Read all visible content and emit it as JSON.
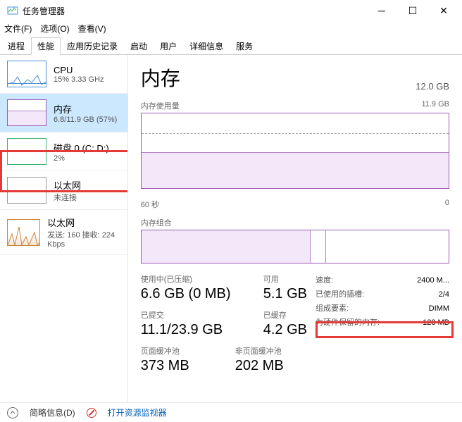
{
  "window": {
    "title": "任务管理器"
  },
  "menu": {
    "file": "文件(F)",
    "options": "选项(O)",
    "view": "查看(V)"
  },
  "tabs": [
    "进程",
    "性能",
    "应用历史记录",
    "启动",
    "用户",
    "详细信息",
    "服务"
  ],
  "active_tab_index": 1,
  "sidebar": [
    {
      "name": "CPU",
      "sub": "15% 3.33 GHz",
      "kind": "cpu",
      "border": "#4a90d9"
    },
    {
      "name": "内存",
      "sub": "6.8/11.9 GB (57%)",
      "kind": "mem",
      "border": "#9b59b6",
      "selected": true
    },
    {
      "name": "磁盘 0 (C: D:)",
      "sub": "2%",
      "kind": "disk",
      "border": "#3cb371"
    },
    {
      "name": "以太网",
      "sub": "未连接",
      "kind": "eth1",
      "border": "#999"
    },
    {
      "name": "以太网",
      "sub": "发送: 160 接收: 224 Kbps",
      "kind": "eth2",
      "border": "#cd853f"
    }
  ],
  "main": {
    "title": "内存",
    "capacity": "12.0 GB",
    "usage_label": "内存使用量",
    "usage_max": "11.9 GB",
    "time_axis": "60 秒",
    "time_axis_end": "0",
    "composition_label": "内存组合",
    "usage_fill_pct": 48,
    "comp_used_pct": 55,
    "comp_mark_pct": 60,
    "colors": {
      "border": "#9b59b6",
      "fill": "#f3e8f9",
      "line": "#b583cc",
      "bg": "#ffffff"
    }
  },
  "stats": {
    "in_use_label": "使用中(已压缩)",
    "in_use_value": "6.6 GB (0 MB)",
    "available_label": "可用",
    "available_value": "5.1 GB",
    "committed_label": "已提交",
    "committed_value": "11.1/23.9 GB",
    "cached_label": "已缓存",
    "cached_value": "4.2 GB",
    "paged_label": "页面缓冲池",
    "paged_value": "373 MB",
    "nonpaged_label": "非页面缓冲池",
    "nonpaged_value": "202 MB"
  },
  "specs": {
    "speed_label": "速度:",
    "speed_value": "2400 M...",
    "slots_label": "已使用的插槽:",
    "slots_value": "2/4",
    "form_label": "组成要素:",
    "form_value": "DIMM",
    "reserved_label": "为硬件保留的内存:",
    "reserved_value": "128 MB"
  },
  "footer": {
    "fewer": "简略信息(D)",
    "resmon": "打开资源监视器"
  },
  "highlight": {
    "color": "#e53935"
  }
}
